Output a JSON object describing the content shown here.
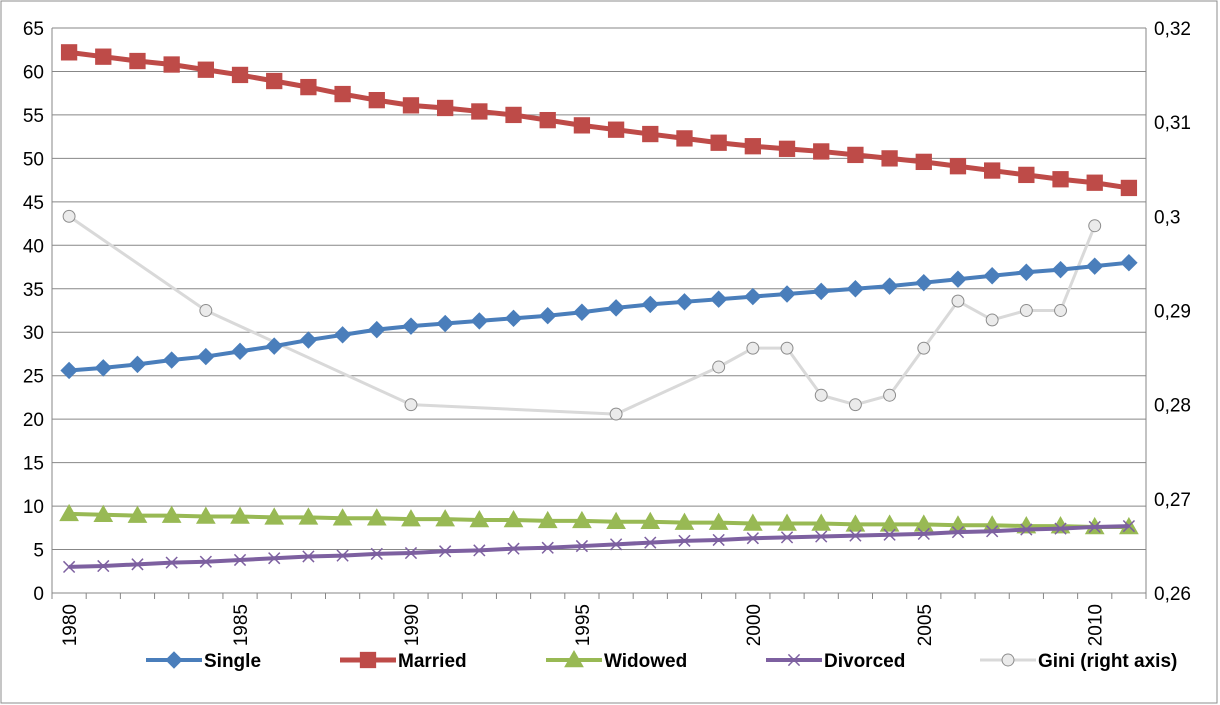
{
  "chart_data": {
    "type": "line",
    "title": "",
    "x": [
      1980,
      1981,
      1982,
      1983,
      1984,
      1985,
      1986,
      1987,
      1988,
      1989,
      1990,
      1991,
      1992,
      1993,
      1994,
      1995,
      1996,
      1997,
      1998,
      1999,
      2000,
      2001,
      2002,
      2003,
      2004,
      2005,
      2006,
      2007,
      2008,
      2009,
      2010,
      2011
    ],
    "x_tick_labels": [
      "1980",
      "1985",
      "1990",
      "1995",
      "2000",
      "2005",
      "2010"
    ],
    "y_left_ticks": [
      "0",
      "5",
      "10",
      "15",
      "20",
      "25",
      "30",
      "35",
      "40",
      "45",
      "50",
      "55",
      "60",
      "65"
    ],
    "y_right_ticks": [
      "0,26",
      "0,27",
      "0,28",
      "0,29",
      "0,3",
      "0,31",
      "0,32"
    ],
    "ylim_left": [
      0,
      65
    ],
    "ylim_right": [
      0.26,
      0.32
    ],
    "grid": true,
    "legend_position": "bottom",
    "series": [
      {
        "name": "Single",
        "axis": "left",
        "color": "#4a7ebb",
        "marker": "diamond",
        "values": [
          25.6,
          25.9,
          26.3,
          26.8,
          27.2,
          27.8,
          28.4,
          29.1,
          29.7,
          30.3,
          30.7,
          31.0,
          31.3,
          31.6,
          31.9,
          32.3,
          32.8,
          33.2,
          33.5,
          33.8,
          34.1,
          34.4,
          34.7,
          35.0,
          35.3,
          35.7,
          36.1,
          36.5,
          36.9,
          37.2,
          37.6,
          38.0
        ]
      },
      {
        "name": "Married",
        "axis": "left",
        "color": "#be4b48",
        "marker": "square",
        "values": [
          62.2,
          61.7,
          61.2,
          60.8,
          60.2,
          59.6,
          58.9,
          58.2,
          57.4,
          56.7,
          56.1,
          55.8,
          55.4,
          55.0,
          54.4,
          53.8,
          53.3,
          52.8,
          52.3,
          51.8,
          51.4,
          51.1,
          50.8,
          50.4,
          50.0,
          49.6,
          49.1,
          48.6,
          48.1,
          47.6,
          47.2,
          46.6
        ]
      },
      {
        "name": "Widowed",
        "axis": "left",
        "color": "#98b954",
        "marker": "triangle",
        "values": [
          9.1,
          9.0,
          8.9,
          8.9,
          8.8,
          8.8,
          8.7,
          8.7,
          8.6,
          8.6,
          8.5,
          8.5,
          8.4,
          8.4,
          8.3,
          8.3,
          8.2,
          8.2,
          8.1,
          8.1,
          8.0,
          8.0,
          8.0,
          7.9,
          7.9,
          7.9,
          7.8,
          7.8,
          7.7,
          7.7,
          7.6,
          7.6
        ]
      },
      {
        "name": "Divorced",
        "axis": "left",
        "color": "#7d60a0",
        "marker": "x",
        "values": [
          3.0,
          3.1,
          3.3,
          3.5,
          3.6,
          3.8,
          4.0,
          4.2,
          4.3,
          4.5,
          4.6,
          4.8,
          4.9,
          5.1,
          5.2,
          5.4,
          5.6,
          5.8,
          6.0,
          6.1,
          6.3,
          6.4,
          6.5,
          6.6,
          6.7,
          6.8,
          7.0,
          7.1,
          7.3,
          7.4,
          7.6,
          7.7
        ]
      },
      {
        "name": "Gini (right axis)",
        "axis": "right",
        "color": "#d9d9d9",
        "marker": "circle",
        "points": [
          [
            1980,
            0.3
          ],
          [
            1984,
            0.29
          ],
          [
            1990,
            0.28
          ],
          [
            1996,
            0.279
          ],
          [
            1999,
            0.284
          ],
          [
            2000,
            0.286
          ],
          [
            2001,
            0.286
          ],
          [
            2002,
            0.281
          ],
          [
            2003,
            0.28
          ],
          [
            2004,
            0.281
          ],
          [
            2005,
            0.286
          ],
          [
            2006,
            0.291
          ],
          [
            2007,
            0.289
          ],
          [
            2008,
            0.29
          ],
          [
            2009,
            0.29
          ],
          [
            2010,
            0.299
          ]
        ]
      }
    ]
  }
}
